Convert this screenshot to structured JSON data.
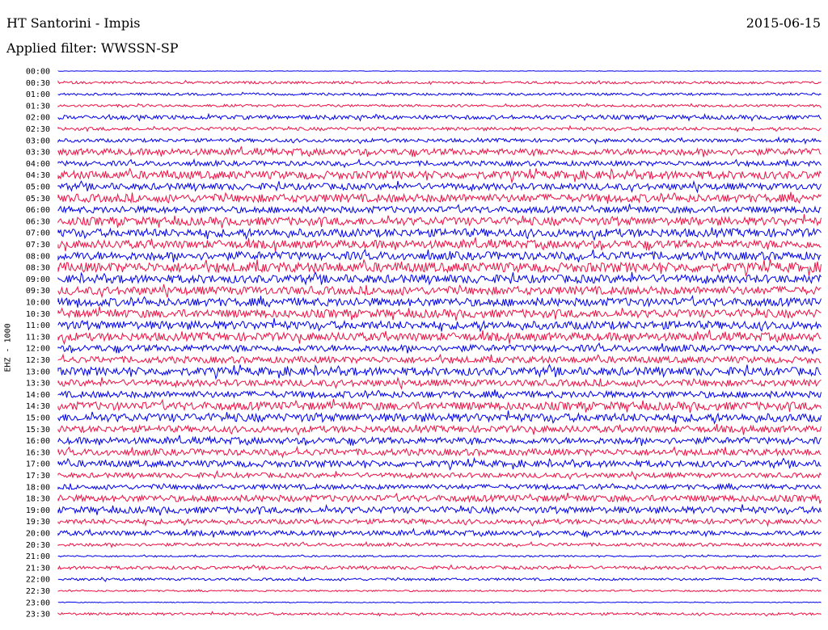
{
  "header": {
    "title": "HT Santorini - Impis",
    "date": "2015-06-15",
    "filter": "Applied filter: WWSSN-SP"
  },
  "channel_label": "EHZ - 1000",
  "colors": {
    "blue": "#0000ee",
    "red": "#ee1144"
  },
  "chart_data": {
    "type": "line",
    "title": "HT Santorini - Impis",
    "subtitle": "Applied filter: WWSSN-SP",
    "ylabel": "EHZ - 1000",
    "grid": false,
    "row_labels": [
      "00:00",
      "00:30",
      "01:00",
      "01:30",
      "02:00",
      "02:30",
      "03:00",
      "03:30",
      "04:00",
      "04:30",
      "05:00",
      "05:30",
      "06:00",
      "06:30",
      "07:00",
      "07:30",
      "08:00",
      "08:30",
      "09:00",
      "09:30",
      "10:00",
      "10:30",
      "11:00",
      "11:30",
      "12:00",
      "12:30",
      "13:00",
      "13:30",
      "14:00",
      "14:30",
      "15:00",
      "15:30",
      "16:00",
      "16:30",
      "17:00",
      "17:30",
      "18:00",
      "18:30",
      "19:00",
      "19:30",
      "20:00",
      "20:30",
      "21:00",
      "21:30",
      "22:00",
      "22:30",
      "23:00",
      "23:30"
    ],
    "row_colors": [
      "blue",
      "red",
      "blue",
      "red",
      "blue",
      "red",
      "blue",
      "red",
      "blue",
      "red",
      "blue",
      "red",
      "blue",
      "red",
      "blue",
      "red",
      "blue",
      "red",
      "blue",
      "red",
      "blue",
      "red",
      "blue",
      "red",
      "blue",
      "red",
      "blue",
      "red",
      "blue",
      "red",
      "blue",
      "red",
      "blue",
      "red",
      "blue",
      "red",
      "blue",
      "red",
      "blue",
      "red",
      "blue",
      "red",
      "blue",
      "red",
      "blue",
      "red",
      "blue",
      "red"
    ],
    "row_amplitude": [
      0.3,
      1.5,
      1.5,
      1.5,
      2.5,
      2,
      2.2,
      4,
      3,
      5,
      4,
      5,
      4,
      5,
      5,
      5,
      5,
      6,
      5,
      5,
      5,
      5,
      5,
      5,
      4,
      4,
      5,
      4,
      4,
      5,
      5,
      4,
      4,
      4,
      4,
      3,
      3,
      4,
      4,
      3,
      3,
      2,
      1,
      2,
      1.5,
      1,
      0.5,
      1.5
    ]
  }
}
